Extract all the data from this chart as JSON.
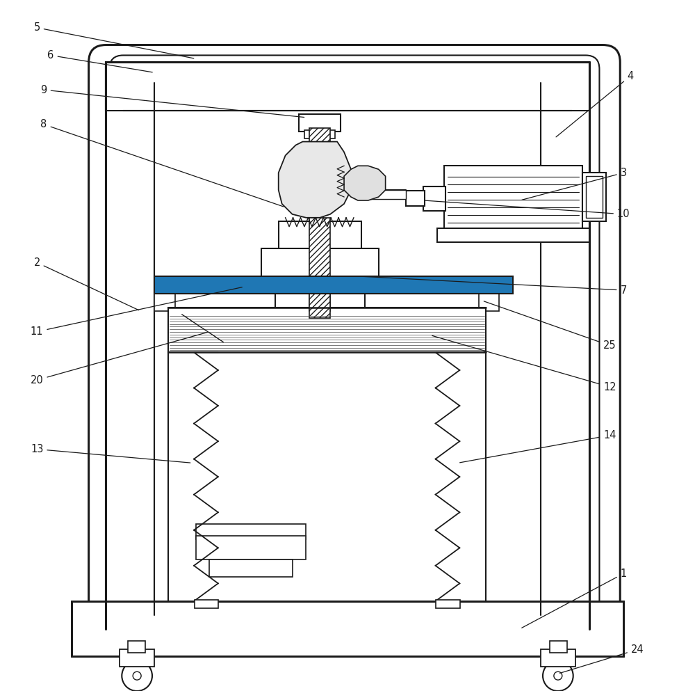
{
  "bg_color": "#ffffff",
  "line_color": "#1a1a1a",
  "label_color": "#1a1a1a",
  "figsize": [
    10.0,
    9.93
  ],
  "dpi": 100
}
